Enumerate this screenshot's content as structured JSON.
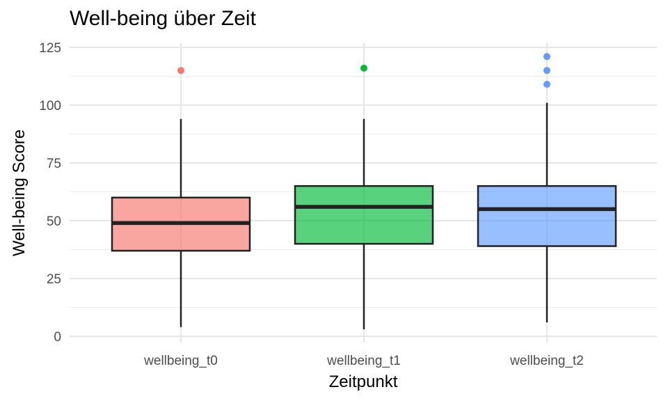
{
  "chart_data": {
    "type": "boxplot",
    "title": "Well-being über Zeit",
    "xlabel": "Zeitpunkt",
    "ylabel": "Well-being Score",
    "ylim": [
      0,
      125
    ],
    "yticks": [
      0,
      25,
      50,
      75,
      100,
      125
    ],
    "grid": true,
    "legend": "none",
    "categories": [
      "wellbeing_t0",
      "wellbeing_t1",
      "wellbeing_t2"
    ],
    "boxes": [
      {
        "category": "wellbeing_t0",
        "whisker_low": 4,
        "q1": 37,
        "median": 49,
        "q3": 60,
        "whisker_high": 94,
        "outliers": [
          115
        ],
        "color": "#F8766D"
      },
      {
        "category": "wellbeing_t1",
        "whisker_low": 3,
        "q1": 40,
        "median": 56,
        "q3": 65,
        "whisker_high": 94,
        "outliers": [
          116
        ],
        "color": "#00BA38"
      },
      {
        "category": "wellbeing_t2",
        "whisker_low": 6,
        "q1": 39,
        "median": 55,
        "q3": 65,
        "whisker_high": 101,
        "outliers": [
          109,
          115,
          121
        ],
        "color": "#619CFF"
      }
    ]
  }
}
